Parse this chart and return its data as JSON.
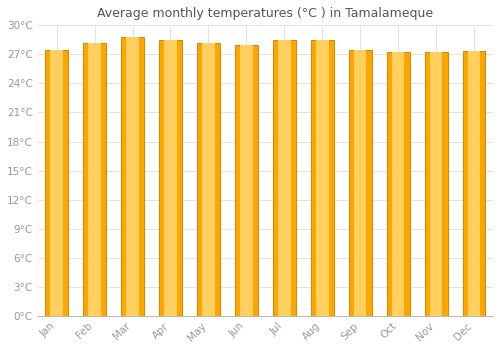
{
  "months": [
    "Jan",
    "Feb",
    "Mar",
    "Apr",
    "May",
    "Jun",
    "Jul",
    "Aug",
    "Sep",
    "Oct",
    "Nov",
    "Dec"
  ],
  "temperatures": [
    27.5,
    28.2,
    28.8,
    28.5,
    28.2,
    28.0,
    28.5,
    28.5,
    27.5,
    27.2,
    27.2,
    27.3
  ],
  "bar_color_main": "#FFA500",
  "bar_color_edge": "#CC8800",
  "bar_color_light": "#FFD060",
  "background_color": "#FFFFFF",
  "plot_bg_color": "#FFFFFF",
  "grid_color": "#DDDDDD",
  "title": "Average monthly temperatures (°C ) in Tamalameque",
  "title_fontsize": 9,
  "tick_label_color": "#999999",
  "title_color": "#555555",
  "ylim": [
    0,
    30
  ],
  "ytick_step": 3,
  "bar_width": 0.6,
  "figsize": [
    5.0,
    3.5
  ],
  "dpi": 100
}
